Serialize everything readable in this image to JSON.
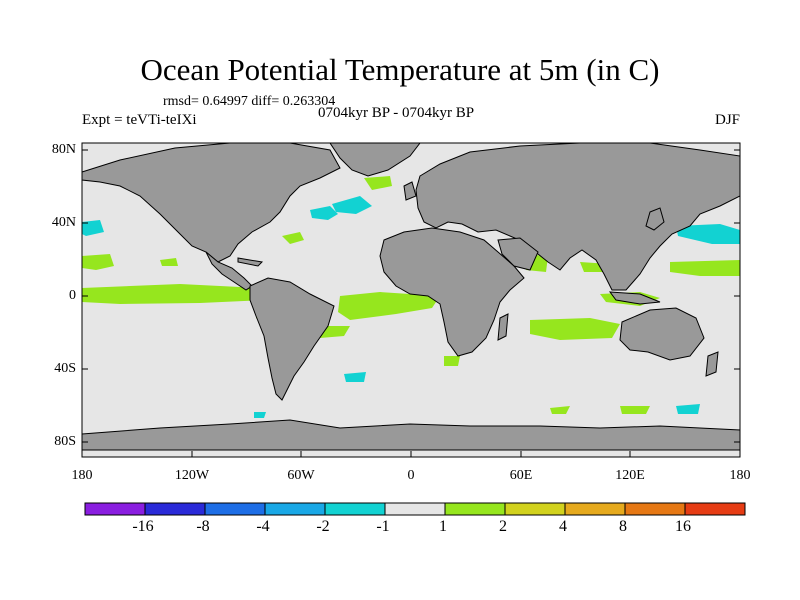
{
  "title": "Ocean Potential Temperature at 5m (in C)",
  "stats": "rmsd= 0.64997  diff= 0.263304",
  "experiment": "Expt = teVTi-teIXi",
  "period": "0704kyr BP - 0704kyr BP",
  "season": "DJF",
  "y_ticks": [
    "80N",
    "40N",
    "0",
    "40S",
    "80S"
  ],
  "x_ticks": [
    "180",
    "120W",
    "60W",
    "0",
    "60E",
    "120E",
    "180"
  ],
  "colorbar": {
    "colors": [
      "#8a1ee0",
      "#2a2ad8",
      "#1e6ee6",
      "#19a8e6",
      "#12d2d2",
      "#e6e6e6",
      "#96e61e",
      "#d2d21e",
      "#e6aa1e",
      "#e67814",
      "#e63c14"
    ],
    "labels": [
      "-16",
      "-8",
      "-4",
      "-2",
      "-1",
      "1",
      "2",
      "4",
      "8",
      "16"
    ]
  },
  "colors": {
    "land": "#999999",
    "ocean": "#e6e6e6",
    "warm": "#96e61e",
    "cool": "#12d2d2"
  }
}
